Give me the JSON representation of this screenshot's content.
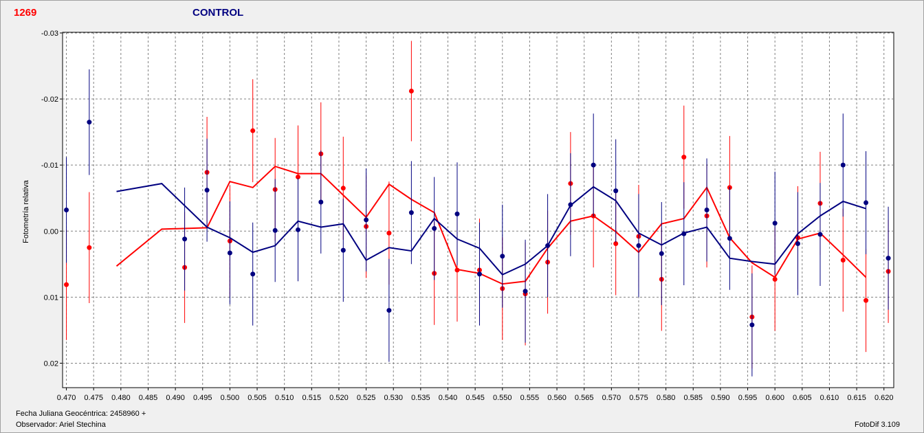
{
  "header": {
    "object_id": "1269",
    "title": "CONTROL"
  },
  "footer": {
    "jd_label": "Fecha Juliana Geocéntrica: 2458960 +",
    "observer_label": "Observador: Ariel Stechina",
    "app": "FotoDif 3.109"
  },
  "colors": {
    "red": "#ff0000",
    "blue": "#000080",
    "grid": "#808080",
    "plot_bg": "#ffffff"
  },
  "chart_data": {
    "type": "scatter",
    "ylabel": "Fotometría relativa",
    "xlabel": "",
    "xlim": [
      0.4693,
      0.6218
    ],
    "ylim": [
      -0.0301,
      0.0237
    ],
    "y_inverted": true,
    "grid": true,
    "x_ticks": [
      "0.470",
      "0.475",
      "0.480",
      "0.485",
      "0.490",
      "0.495",
      "0.500",
      "0.505",
      "0.510",
      "0.515",
      "0.520",
      "0.525",
      "0.530",
      "0.535",
      "0.540",
      "0.545",
      "0.550",
      "0.555",
      "0.560",
      "0.565",
      "0.570",
      "0.575",
      "0.580",
      "0.585",
      "0.590",
      "0.595",
      "0.600",
      "0.605",
      "0.610",
      "0.615",
      "0.620"
    ],
    "y_ticks": [
      "-0.03",
      "-0.02",
      "-0.01",
      "0.00",
      "0.01",
      "0.02"
    ],
    "series": [
      {
        "color": "#ff0000",
        "points": [
          {
            "x": 0.47,
            "y": 0.0081,
            "err": 0.0084
          },
          {
            "x": 0.4742,
            "y": 0.0025,
            "err": 0.0084
          },
          {
            "x": 0.4917,
            "y": 0.0055,
            "err": 0.0084
          },
          {
            "x": 0.4958,
            "y": -0.0089,
            "err": 0.0084
          },
          {
            "x": 0.5,
            "y": 0.0015,
            "err": 0.0084
          },
          {
            "x": 0.5042,
            "y": -0.0152,
            "err": 0.0078
          },
          {
            "x": 0.5083,
            "y": -0.0063,
            "err": 0.0078
          },
          {
            "x": 0.5125,
            "y": -0.0082,
            "err": 0.0078
          },
          {
            "x": 0.5167,
            "y": -0.0117,
            "err": 0.0078
          },
          {
            "x": 0.5208,
            "y": -0.0065,
            "err": 0.0078
          },
          {
            "x": 0.525,
            "y": -0.0007,
            "err": 0.0078
          },
          {
            "x": 0.5292,
            "y": 0.0003,
            "err": 0.0078
          },
          {
            "x": 0.5333,
            "y": -0.0212,
            "err": 0.0076
          },
          {
            "x": 0.5375,
            "y": 0.0064,
            "err": 0.0078
          },
          {
            "x": 0.5417,
            "y": 0.0059,
            "err": 0.0078
          },
          {
            "x": 0.5458,
            "y": 0.0059,
            "err": 0.0078
          },
          {
            "x": 0.55,
            "y": 0.0087,
            "err": 0.0078
          },
          {
            "x": 0.5542,
            "y": 0.0095,
            "err": 0.0078
          },
          {
            "x": 0.5583,
            "y": 0.0047,
            "err": 0.0078
          },
          {
            "x": 0.5625,
            "y": -0.0072,
            "err": 0.0078
          },
          {
            "x": 0.5667,
            "y": -0.0023,
            "err": 0.0078
          },
          {
            "x": 0.5708,
            "y": 0.0019,
            "err": 0.0078
          },
          {
            "x": 0.575,
            "y": 0.0008,
            "err": 0.0078
          },
          {
            "x": 0.5792,
            "y": 0.0073,
            "err": 0.0078
          },
          {
            "x": 0.5833,
            "y": -0.0112,
            "err": 0.0078
          },
          {
            "x": 0.5875,
            "y": -0.0023,
            "err": 0.0078
          },
          {
            "x": 0.5917,
            "y": -0.0066,
            "err": 0.0078
          },
          {
            "x": 0.5958,
            "y": 0.013,
            "err": 0.0078
          },
          {
            "x": 0.6,
            "y": 0.0073,
            "err": 0.0078
          },
          {
            "x": 0.6042,
            "y": 0.001,
            "err": 0.0078
          },
          {
            "x": 0.6083,
            "y": -0.0042,
            "err": 0.0078
          },
          {
            "x": 0.6125,
            "y": 0.0044,
            "err": 0.0078
          },
          {
            "x": 0.6167,
            "y": 0.0105,
            "err": 0.0078
          },
          {
            "x": 0.6208,
            "y": 0.0061,
            "err": 0.0078
          }
        ],
        "line": [
          {
            "x": 0.4792,
            "y": 0.0053
          },
          {
            "x": 0.4875,
            "y": -0.0003
          },
          {
            "x": 0.4958,
            "y": -0.0005
          },
          {
            "x": 0.5,
            "y": -0.0075
          },
          {
            "x": 0.5042,
            "y": -0.0066
          },
          {
            "x": 0.5083,
            "y": -0.0098
          },
          {
            "x": 0.5125,
            "y": -0.0087
          },
          {
            "x": 0.5167,
            "y": -0.0087
          },
          {
            "x": 0.525,
            "y": -0.0021
          },
          {
            "x": 0.5292,
            "y": -0.0071
          },
          {
            "x": 0.5333,
            "y": -0.0048
          },
          {
            "x": 0.5375,
            "y": -0.0028
          },
          {
            "x": 0.5417,
            "y": 0.0058
          },
          {
            "x": 0.5458,
            "y": 0.0064
          },
          {
            "x": 0.55,
            "y": 0.008
          },
          {
            "x": 0.5542,
            "y": 0.0076
          },
          {
            "x": 0.5583,
            "y": 0.0026
          },
          {
            "x": 0.5625,
            "y": -0.0015
          },
          {
            "x": 0.5667,
            "y": -0.0023
          },
          {
            "x": 0.5708,
            "y": 0.0001
          },
          {
            "x": 0.575,
            "y": 0.0032
          },
          {
            "x": 0.5792,
            "y": -0.0011
          },
          {
            "x": 0.5833,
            "y": -0.0019
          },
          {
            "x": 0.5875,
            "y": -0.0066
          },
          {
            "x": 0.5917,
            "y": 0.001
          },
          {
            "x": 0.5958,
            "y": 0.0048
          },
          {
            "x": 0.6,
            "y": 0.007
          },
          {
            "x": 0.6042,
            "y": 0.0012
          },
          {
            "x": 0.6083,
            "y": 0.0003
          },
          {
            "x": 0.6125,
            "y": 0.0036
          },
          {
            "x": 0.6167,
            "y": 0.007
          }
        ]
      },
      {
        "color": "#000080",
        "points": [
          {
            "x": 0.47,
            "y": -0.0032,
            "err": 0.008
          },
          {
            "x": 0.4742,
            "y": -0.0165,
            "err": 0.008
          },
          {
            "x": 0.4917,
            "y": 0.0012,
            "err": 0.0078
          },
          {
            "x": 0.4958,
            "y": -0.0062,
            "err": 0.0078
          },
          {
            "x": 0.5,
            "y": 0.0033,
            "err": 0.0078
          },
          {
            "x": 0.5042,
            "y": 0.0065,
            "err": 0.0078
          },
          {
            "x": 0.5083,
            "y": -0.0001,
            "err": 0.0078
          },
          {
            "x": 0.5125,
            "y": -0.0002,
            "err": 0.0078
          },
          {
            "x": 0.5167,
            "y": -0.0044,
            "err": 0.0078
          },
          {
            "x": 0.5208,
            "y": 0.0029,
            "err": 0.0078
          },
          {
            "x": 0.525,
            "y": -0.0017,
            "err": 0.0078
          },
          {
            "x": 0.5292,
            "y": 0.012,
            "err": 0.0078
          },
          {
            "x": 0.5333,
            "y": -0.0028,
            "err": 0.0078
          },
          {
            "x": 0.5375,
            "y": -0.0004,
            "err": 0.0078
          },
          {
            "x": 0.5417,
            "y": -0.0026,
            "err": 0.0078
          },
          {
            "x": 0.5458,
            "y": 0.0065,
            "err": 0.0078
          },
          {
            "x": 0.55,
            "y": 0.0038,
            "err": 0.0078
          },
          {
            "x": 0.5542,
            "y": 0.0091,
            "err": 0.0078
          },
          {
            "x": 0.5583,
            "y": 0.0022,
            "err": 0.0078
          },
          {
            "x": 0.5625,
            "y": -0.004,
            "err": 0.0078
          },
          {
            "x": 0.5667,
            "y": -0.01,
            "err": 0.0078
          },
          {
            "x": 0.5708,
            "y": -0.0061,
            "err": 0.0078
          },
          {
            "x": 0.575,
            "y": 0.0022,
            "err": 0.0078
          },
          {
            "x": 0.5792,
            "y": 0.0034,
            "err": 0.0078
          },
          {
            "x": 0.5833,
            "y": 0.0004,
            "err": 0.0078
          },
          {
            "x": 0.5875,
            "y": -0.0032,
            "err": 0.0078
          },
          {
            "x": 0.5917,
            "y": 0.0011,
            "err": 0.0078
          },
          {
            "x": 0.5958,
            "y": 0.0142,
            "err": 0.0078
          },
          {
            "x": 0.6,
            "y": -0.0012,
            "err": 0.0078
          },
          {
            "x": 0.6042,
            "y": 0.0019,
            "err": 0.0078
          },
          {
            "x": 0.6083,
            "y": 0.0005,
            "err": 0.0078
          },
          {
            "x": 0.6125,
            "y": -0.01,
            "err": 0.0078
          },
          {
            "x": 0.6167,
            "y": -0.0043,
            "err": 0.0078
          },
          {
            "x": 0.6208,
            "y": 0.0041,
            "err": 0.0078
          }
        ],
        "line": [
          {
            "x": 0.4792,
            "y": -0.006
          },
          {
            "x": 0.4875,
            "y": -0.0072
          },
          {
            "x": 0.4958,
            "y": -0.0006
          },
          {
            "x": 0.5,
            "y": 0.001
          },
          {
            "x": 0.5042,
            "y": 0.0032
          },
          {
            "x": 0.5083,
            "y": 0.0022
          },
          {
            "x": 0.5125,
            "y": -0.0015
          },
          {
            "x": 0.5167,
            "y": -0.0006
          },
          {
            "x": 0.5208,
            "y": -0.0011
          },
          {
            "x": 0.525,
            "y": 0.0044
          },
          {
            "x": 0.5292,
            "y": 0.0025
          },
          {
            "x": 0.5333,
            "y": 0.003
          },
          {
            "x": 0.5375,
            "y": -0.0019
          },
          {
            "x": 0.5417,
            "y": 0.0012
          },
          {
            "x": 0.5458,
            "y": 0.0026
          },
          {
            "x": 0.55,
            "y": 0.0066
          },
          {
            "x": 0.5542,
            "y": 0.005
          },
          {
            "x": 0.5583,
            "y": 0.0022
          },
          {
            "x": 0.5625,
            "y": -0.0039
          },
          {
            "x": 0.5667,
            "y": -0.0067
          },
          {
            "x": 0.5708,
            "y": -0.0046
          },
          {
            "x": 0.575,
            "y": 0.0003
          },
          {
            "x": 0.5792,
            "y": 0.0021
          },
          {
            "x": 0.5833,
            "y": 0.0003
          },
          {
            "x": 0.5875,
            "y": -0.0006
          },
          {
            "x": 0.5917,
            "y": 0.0041
          },
          {
            "x": 0.5958,
            "y": 0.0046
          },
          {
            "x": 0.6,
            "y": 0.005
          },
          {
            "x": 0.6042,
            "y": 0.0004
          },
          {
            "x": 0.6083,
            "y": -0.0023
          },
          {
            "x": 0.6125,
            "y": -0.0045
          },
          {
            "x": 0.6167,
            "y": -0.0034
          }
        ]
      }
    ]
  }
}
